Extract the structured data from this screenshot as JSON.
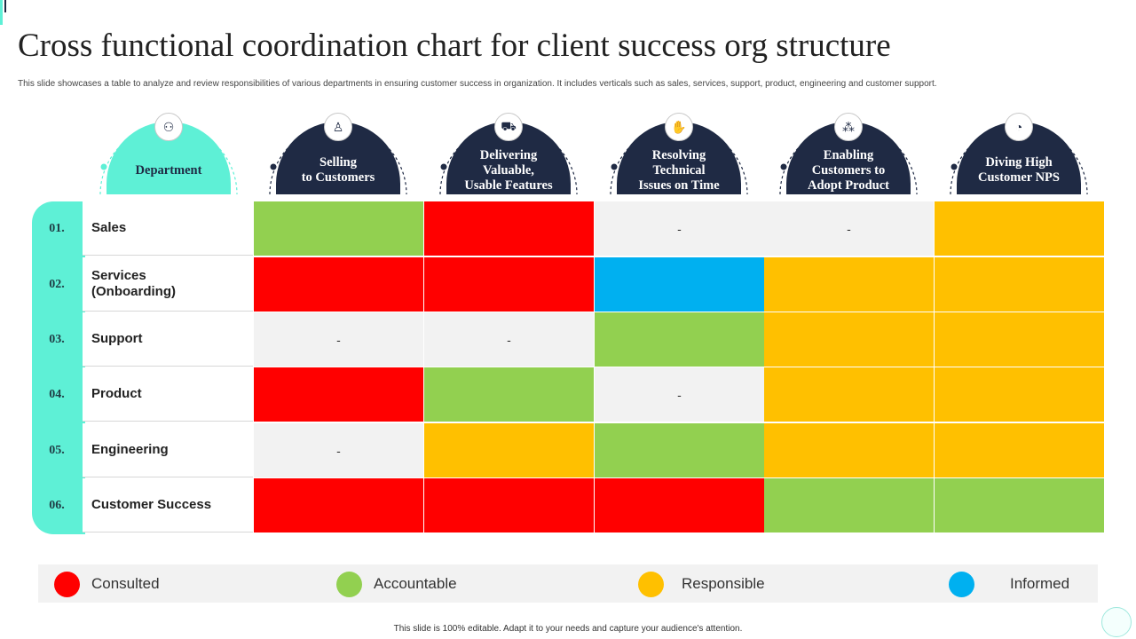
{
  "title": "Cross functional coordination chart for client success org structure",
  "subtitle": "This slide showcases a table to analyze and review responsibilities of various departments in ensuring customer success in organization. It includes verticals such as sales, services, support, product, engineering and customer support.",
  "department_header": {
    "label": "Department",
    "icon": "org-chart-icon"
  },
  "columns": [
    {
      "label": "Selling\nto Customers",
      "icon": "salesperson-icon"
    },
    {
      "label": "Delivering\nValuable,\nUsable Features",
      "icon": "delivery-truck-icon"
    },
    {
      "label": "Resolving\nTechnical\nIssues on Time",
      "icon": "handshake-icon"
    },
    {
      "label": "Enabling\nCustomers to\nAdopt Product",
      "icon": "network-people-icon"
    },
    {
      "label": "Diving High\nCustomer NPS",
      "icon": "gauge-icon"
    }
  ],
  "rows": [
    {
      "num": "01.",
      "name": "Sales",
      "cells": [
        "accountable",
        "consulted",
        "none",
        "none",
        "responsible"
      ]
    },
    {
      "num": "02.",
      "name": "Services\n(Onboarding)",
      "cells": [
        "consulted",
        "consulted",
        "informed",
        "responsible",
        "responsible"
      ]
    },
    {
      "num": "03.",
      "name": "Support",
      "cells": [
        "none",
        "none",
        "accountable",
        "responsible",
        "responsible"
      ]
    },
    {
      "num": "04.",
      "name": "Product",
      "cells": [
        "consulted",
        "accountable",
        "none",
        "responsible",
        "responsible"
      ]
    },
    {
      "num": "05.",
      "name": "Engineering",
      "cells": [
        "none",
        "responsible",
        "accountable",
        "responsible",
        "responsible"
      ]
    },
    {
      "num": "06.",
      "name": "Customer Success",
      "cells": [
        "consulted",
        "consulted",
        "consulted",
        "accountable",
        "accountable"
      ]
    }
  ],
  "empty_mark": "-",
  "legend": [
    {
      "key": "consulted",
      "label": "Consulted",
      "color": "#ff0000"
    },
    {
      "key": "accountable",
      "label": "Accountable",
      "color": "#92d050"
    },
    {
      "key": "responsible",
      "label": "Responsible",
      "color": "#ffc000"
    },
    {
      "key": "informed",
      "label": "Informed",
      "color": "#00b0f0"
    }
  ],
  "colors": {
    "accent": "#5ef0d6",
    "header_navy": "#1f2a44",
    "empty_cell": "#f2f2f2"
  },
  "footer": "This slide is 100% editable. Adapt it to your needs and capture your audience's attention."
}
